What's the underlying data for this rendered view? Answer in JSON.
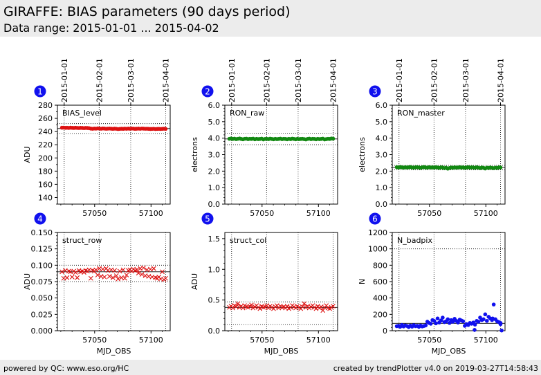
{
  "header": {
    "title": "GIRAFFE: BIAS parameters (90 days period)",
    "subtitle": "Data range: 2015-01-01 ... 2015-04-02"
  },
  "footer": {
    "left": "powered by QC: www.eso.org/HC",
    "right": "created by trendPlotter v4.0 on 2019-03-27T14:58:43"
  },
  "colors": {
    "red": "#dd1111",
    "green": "#118811",
    "blue": "#1111ee",
    "badge": "#1111ee",
    "header_bg": "#ececec"
  },
  "chart_data": [
    {
      "id": 1,
      "badge": "1",
      "type": "scatter",
      "marker": "circle",
      "color": "#dd1111",
      "label": "BIAS_level",
      "ylabel": "ADU",
      "ylim": [
        130,
        280
      ],
      "yticks": [
        140,
        160,
        180,
        200,
        220,
        240,
        260,
        280
      ],
      "ytick_labels": [
        "140",
        "160",
        "180",
        "200",
        "220",
        "240",
        "260",
        "280"
      ],
      "xlim": [
        57017,
        57117
      ],
      "xticks": [
        57050,
        57100
      ],
      "xtick_labels": [
        "57050",
        "57100"
      ],
      "xlabel": "",
      "date_ticks": [
        57023,
        57054,
        57082,
        57113
      ],
      "date_labels": [
        "2015-01-01",
        "2015-02-01",
        "2015-03-01",
        "2015-04-01"
      ],
      "ref_lines": [
        {
          "y": 244.5,
          "style": "solid"
        },
        {
          "y": 252,
          "style": "dotted"
        },
        {
          "y": 237,
          "style": "dotted"
        }
      ],
      "x_start": 57021,
      "x_end": 57113,
      "values": [
        245.8,
        245.9,
        245.6,
        245.7,
        245.5,
        245.8,
        245.6,
        245.4,
        245.7,
        245.5,
        245.3,
        245.6,
        245.4,
        245.2,
        245.5,
        245.3,
        245.1,
        244.5,
        244.2,
        244.6,
        244.4,
        244.8,
        244.6,
        244.3,
        244.7,
        244.5,
        244.2,
        244.4,
        244.6,
        244.3,
        244.1,
        244.4,
        244.2,
        243.8,
        244.0,
        244.3,
        244.1,
        244.4,
        244.2,
        244.5,
        244.3,
        244.6,
        244.4,
        244.1,
        244.3,
        244.5,
        244.2,
        244.6,
        244.4,
        244.2,
        244.3,
        244.1,
        243.9,
        244.0,
        244.2,
        243.8,
        244.0,
        244.1,
        243.9,
        244.1,
        244.3,
        244.0
      ]
    },
    {
      "id": 2,
      "badge": "2",
      "type": "scatter",
      "marker": "circle",
      "color": "#118811",
      "label": "RON_raw",
      "ylabel": "electrons",
      "ylim": [
        0,
        6
      ],
      "yticks": [
        0,
        1,
        2,
        3,
        4,
        5,
        6
      ],
      "ytick_labels": [
        "0.0",
        "1.0",
        "2.0",
        "3.0",
        "4.0",
        "5.0",
        "6.0"
      ],
      "xlim": [
        57017,
        57117
      ],
      "xticks": [
        57050,
        57100
      ],
      "xtick_labels": [
        "57050",
        "57100"
      ],
      "xlabel": "",
      "date_ticks": [
        57023,
        57054,
        57082,
        57113
      ],
      "date_labels": [
        "2015-01-01",
        "2015-02-01",
        "2015-03-01",
        "2015-04-01"
      ],
      "ref_lines": [
        {
          "y": 3.95,
          "style": "solid"
        },
        {
          "y": 4.3,
          "style": "dotted"
        },
        {
          "y": 3.6,
          "style": "dotted"
        }
      ],
      "x_start": 57021,
      "x_end": 57113,
      "values": [
        3.96,
        3.98,
        3.95,
        3.97,
        3.94,
        3.96,
        3.98,
        3.95,
        3.93,
        3.96,
        3.97,
        3.94,
        3.96,
        3.95,
        3.97,
        3.93,
        3.96,
        3.94,
        3.95,
        3.97,
        3.92,
        3.95,
        3.96,
        3.94,
        3.97,
        3.95,
        3.93,
        3.96,
        3.94,
        3.95,
        3.97,
        3.94,
        3.96,
        3.95,
        3.93,
        3.96,
        3.94,
        3.97,
        3.95,
        3.93,
        3.96,
        3.94,
        3.95,
        3.96,
        3.94,
        3.92,
        3.95,
        3.97,
        3.94,
        3.96,
        3.95,
        3.93,
        3.96,
        3.94,
        3.95,
        3.97,
        3.92,
        3.94,
        3.96,
        3.95,
        3.98,
        3.97
      ]
    },
    {
      "id": 3,
      "badge": "3",
      "type": "scatter",
      "marker": "circle",
      "color": "#118811",
      "label": "RON_master",
      "ylabel": "electrons",
      "ylim": [
        0,
        6
      ],
      "yticks": [
        0,
        1,
        2,
        3,
        4,
        5,
        6
      ],
      "ytick_labels": [
        "0.0",
        "1.0",
        "2.0",
        "3.0",
        "4.0",
        "5.0",
        "6.0"
      ],
      "xlim": [
        57017,
        57117
      ],
      "xticks": [
        57050,
        57100
      ],
      "xtick_labels": [
        "57050",
        "57100"
      ],
      "xlabel": "",
      "date_ticks": [
        57023,
        57054,
        57082,
        57113
      ],
      "date_labels": [
        "2015-01-01",
        "2015-02-01",
        "2015-03-01",
        "2015-04-01"
      ],
      "ref_lines": [
        {
          "y": 2.22,
          "style": "solid"
        },
        {
          "y": 2.35,
          "style": "dotted"
        },
        {
          "y": 2.08,
          "style": "dotted"
        }
      ],
      "x_start": 57021,
      "x_end": 57113,
      "values": [
        2.24,
        2.22,
        2.25,
        2.23,
        2.21,
        2.24,
        2.22,
        2.23,
        2.25,
        2.22,
        2.21,
        2.23,
        2.24,
        2.22,
        2.2,
        2.23,
        2.25,
        2.22,
        2.21,
        2.24,
        2.22,
        2.23,
        2.21,
        2.24,
        2.22,
        2.2,
        2.23,
        2.22,
        2.18,
        2.21,
        2.15,
        2.19,
        2.22,
        2.2,
        2.23,
        2.21,
        2.22,
        2.24,
        2.21,
        2.23,
        2.2,
        2.22,
        2.24,
        2.21,
        2.23,
        2.22,
        2.2,
        2.23,
        2.21,
        2.18,
        2.22,
        2.2,
        2.16,
        2.21,
        2.19,
        2.22,
        2.2,
        2.18,
        2.21,
        2.19,
        2.23,
        2.22
      ]
    },
    {
      "id": 4,
      "badge": "4",
      "type": "scatter",
      "marker": "cross",
      "color": "#dd1111",
      "label": "struct_row",
      "ylabel": "ADU",
      "ylim": [
        0,
        0.15
      ],
      "yticks": [
        0,
        0.025,
        0.05,
        0.075,
        0.1,
        0.125,
        0.15
      ],
      "ytick_labels": [
        "0.000",
        "0.025",
        "0.050",
        "0.075",
        "0.100",
        "0.125",
        "0.150"
      ],
      "xlim": [
        57017,
        57117
      ],
      "xticks": [
        57050,
        57100
      ],
      "xtick_labels": [
        "57050",
        "57100"
      ],
      "xlabel": "MJD_OBS",
      "date_ticks": [
        57023,
        57054,
        57082,
        57113
      ],
      "date_labels": [],
      "ref_lines": [
        {
          "y": 0.09,
          "style": "solid"
        },
        {
          "y": 0.1,
          "style": "dotted"
        },
        {
          "y": 0.075,
          "style": "dotted"
        }
      ],
      "x_start": 57021,
      "x_end": 57113,
      "values": [
        0.09,
        0.08,
        0.092,
        0.081,
        0.091,
        0.09,
        0.082,
        0.091,
        0.089,
        0.081,
        0.092,
        0.09,
        0.091,
        0.089,
        0.092,
        0.091,
        0.093,
        0.08,
        0.092,
        0.091,
        0.093,
        0.085,
        0.095,
        0.083,
        0.094,
        0.082,
        0.095,
        0.092,
        0.083,
        0.093,
        0.081,
        0.092,
        0.084,
        0.079,
        0.091,
        0.081,
        0.093,
        0.08,
        0.085,
        0.092,
        0.093,
        0.091,
        0.094,
        0.092,
        0.093,
        0.088,
        0.095,
        0.086,
        0.096,
        0.084,
        0.093,
        0.083,
        0.094,
        0.082,
        0.095,
        0.081,
        0.08,
        0.082,
        0.079,
        0.09,
        0.078,
        0.08
      ]
    },
    {
      "id": 5,
      "badge": "5",
      "type": "scatter",
      "marker": "cross",
      "color": "#dd1111",
      "label": "struct_col",
      "ylabel": "ADU",
      "ylim": [
        0,
        1.6
      ],
      "yticks": [
        0,
        0.5,
        1.0,
        1.5
      ],
      "ytick_labels": [
        "0.0",
        "0.5",
        "1.0",
        "1.5"
      ],
      "xlim": [
        57017,
        57117
      ],
      "xticks": [
        57050,
        57100
      ],
      "xtick_labels": [
        "57050",
        "57100"
      ],
      "xlabel": "MJD_OBS",
      "date_ticks": [
        57023,
        57054,
        57082,
        57113
      ],
      "date_labels": [],
      "ref_lines": [
        {
          "y": 0.38,
          "style": "solid"
        },
        {
          "y": 0.47,
          "style": "dotted"
        },
        {
          "y": 0.1,
          "style": "dotted"
        }
      ],
      "x_start": 57021,
      "x_end": 57113,
      "values": [
        0.38,
        0.4,
        0.37,
        0.41,
        0.39,
        0.44,
        0.38,
        0.4,
        0.37,
        0.41,
        0.39,
        0.38,
        0.4,
        0.42,
        0.37,
        0.39,
        0.41,
        0.38,
        0.36,
        0.4,
        0.38,
        0.39,
        0.41,
        0.37,
        0.4,
        0.38,
        0.36,
        0.39,
        0.41,
        0.37,
        0.4,
        0.38,
        0.39,
        0.37,
        0.4,
        0.36,
        0.38,
        0.41,
        0.39,
        0.37,
        0.4,
        0.38,
        0.36,
        0.39,
        0.44,
        0.38,
        0.4,
        0.37,
        0.39,
        0.41,
        0.38,
        0.36,
        0.4,
        0.37,
        0.39,
        0.33,
        0.38,
        0.41,
        0.37,
        0.36,
        0.38,
        0.4
      ]
    },
    {
      "id": 6,
      "badge": "6",
      "type": "scatter",
      "marker": "circle",
      "color": "#1111ee",
      "label": "N_badpix",
      "ylabel": "N",
      "ylim": [
        0,
        1200
      ],
      "yticks": [
        0,
        200,
        400,
        600,
        800,
        1000,
        1200
      ],
      "ytick_labels": [
        "0",
        "200",
        "400",
        "600",
        "800",
        "1000",
        "1200"
      ],
      "xlim": [
        57017,
        57117
      ],
      "xticks": [
        57050,
        57100
      ],
      "xtick_labels": [
        "57050",
        "57100"
      ],
      "xlabel": "MJD_OBS",
      "date_ticks": [
        57023,
        57054,
        57082,
        57113
      ],
      "date_labels": [],
      "ref_lines": [
        {
          "y": 90,
          "style": "solid"
        },
        {
          "y": 1000,
          "style": "dotted"
        }
      ],
      "x_start": 57021,
      "x_end": 57113,
      "values": [
        55,
        60,
        48,
        70,
        52,
        65,
        58,
        45,
        62,
        50,
        68,
        55,
        60,
        47,
        63,
        52,
        58,
        65,
        110,
        95,
        85,
        130,
        120,
        90,
        150,
        100,
        125,
        160,
        105,
        115,
        140,
        95,
        130,
        110,
        145,
        120,
        100,
        135,
        125,
        115,
        60,
        80,
        70,
        95,
        85,
        100,
        75,
        120,
        110,
        160,
        130,
        140,
        200,
        120,
        170,
        150,
        130,
        320,
        140,
        115,
        105,
        80
      ],
      "extra_points": [
        [
          57106,
          150
        ],
        [
          57113,
          95
        ],
        [
          57090,
          10
        ],
        [
          57114,
          3
        ]
      ]
    }
  ]
}
